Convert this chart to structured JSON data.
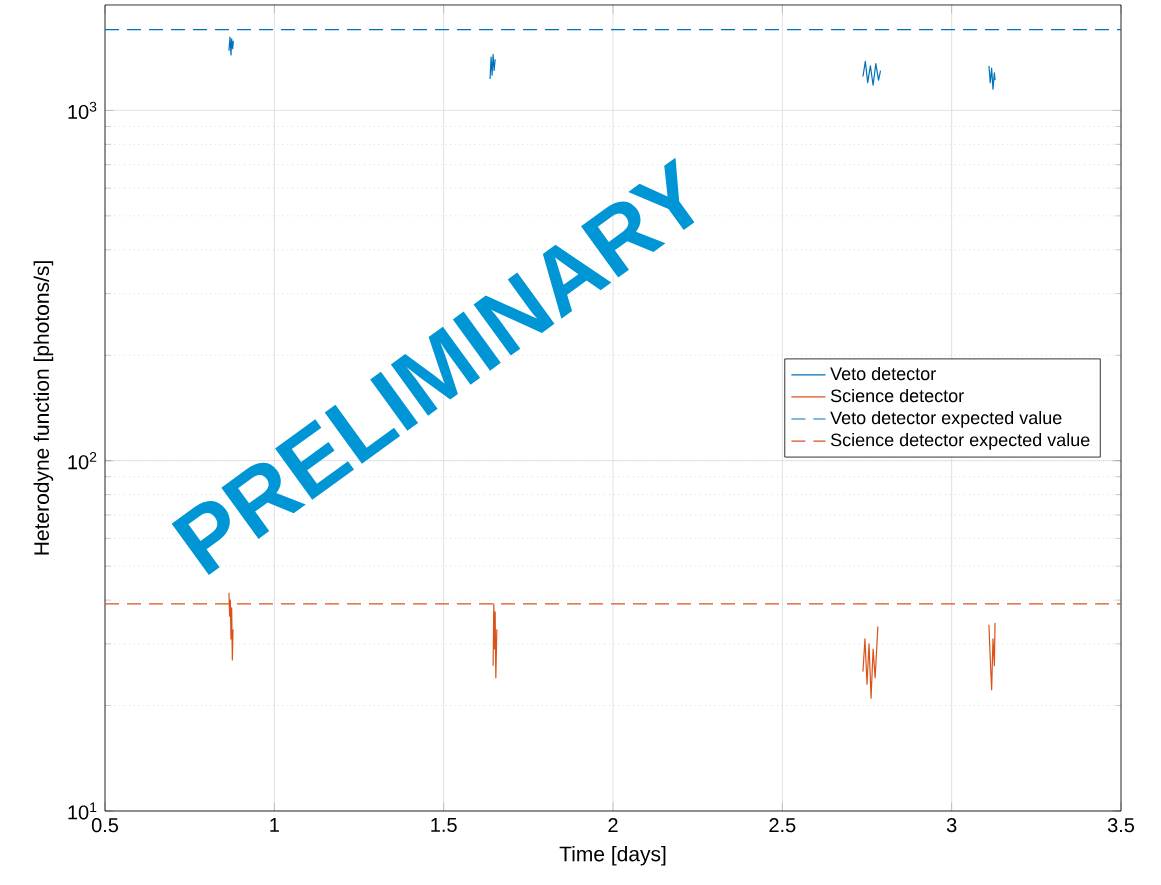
{
  "chart_data": {
    "type": "line",
    "xlabel": "Time [days]",
    "ylabel": "Heterodyne function [photons/s]",
    "log": "y",
    "grid": true,
    "legend": "right",
    "marker": "none",
    "xlim": [
      0.5,
      3.5
    ],
    "xticks": [
      0.5,
      1,
      1.5,
      2,
      2.5,
      3,
      3.5
    ],
    "ylim": [
      10,
      2000
    ],
    "yticks": [
      {
        "value": 10,
        "label": "10$^{1}$"
      },
      {
        "value": 100,
        "label": "10$^{2}$"
      },
      {
        "value": 1000,
        "label": "10$^{3}$"
      }
    ],
    "series": [
      {
        "name": "Veto detector",
        "color": "#0072bd",
        "line_style": "solid",
        "x": [
          0.866,
          0.869,
          0.872,
          0.874,
          0.877,
          0.879,
          null,
          1.637,
          1.64,
          1.643,
          1.646,
          1.649,
          1.652,
          null,
          2.738,
          2.745,
          2.752,
          2.76,
          2.768,
          2.776,
          2.784,
          2.79,
          null,
          3.11,
          3.114,
          3.118,
          3.122,
          3.126,
          3.128
        ],
        "values": [
          1480,
          1620,
          1440,
          1600,
          1500,
          1580,
          null,
          1230,
          1420,
          1260,
          1445,
          1300,
          1400,
          null,
          1250,
          1380,
          1200,
          1340,
          1180,
          1360,
          1220,
          1300,
          null,
          1340,
          1200,
          1320,
          1150,
          1280,
          1220
        ]
      },
      {
        "name": "Science detector",
        "color": "#d95319",
        "line_style": "solid",
        "x": [
          0.866,
          0.868,
          0.87,
          0.872,
          0.874,
          0.876,
          0.878,
          null,
          1.646,
          1.648,
          1.65,
          1.652,
          1.654,
          1.657,
          null,
          2.738,
          2.744,
          2.75,
          2.756,
          2.762,
          2.768,
          2.774,
          2.782,
          null,
          3.11,
          3.114,
          3.118,
          3.122,
          3.126,
          3.128
        ],
        "values": [
          42,
          36,
          40,
          31,
          38,
          27,
          33,
          null,
          26,
          39,
          29,
          37,
          24,
          33,
          null,
          25,
          31,
          23,
          30,
          21,
          29,
          24,
          33.6,
          null,
          34,
          27,
          22.2,
          31,
          26,
          34.4
        ]
      },
      {
        "name": "Veto detector expected value",
        "color": "#0072bd",
        "line_style": "dashed",
        "x": [
          0.5,
          3.5
        ],
        "values": [
          1700,
          1700
        ]
      },
      {
        "name": "Science detector expected value",
        "color": "#d95319",
        "line_style": "dashed",
        "x": [
          0.5,
          3.5
        ],
        "values": [
          39,
          39
        ]
      }
    ],
    "annotations": [
      "PRELIMINARY"
    ]
  }
}
